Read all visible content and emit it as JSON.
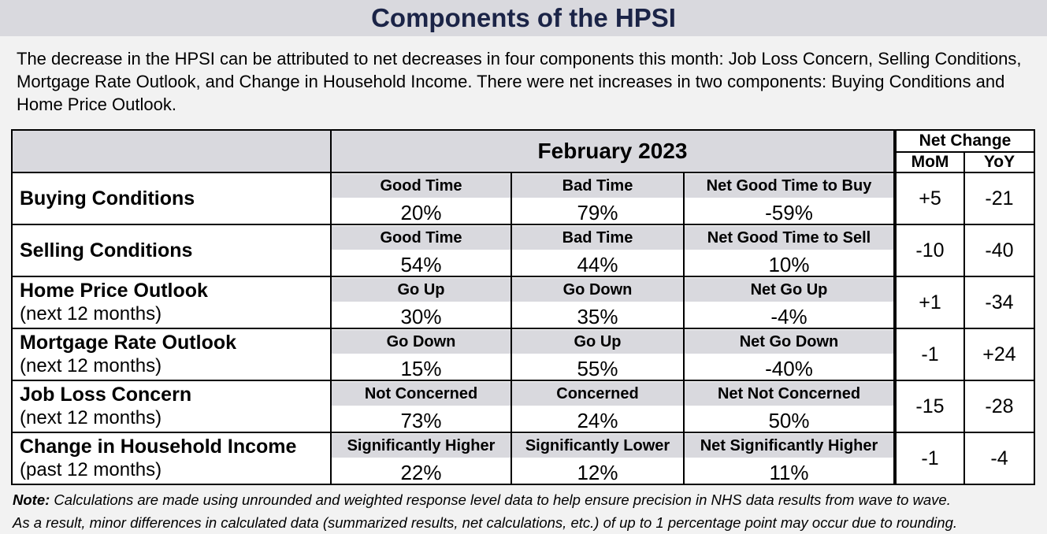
{
  "title": "Components of the HPSI",
  "intro": "The decrease in the HPSI can be attributed to net decreases in four components this month: Job Loss Concern, Selling Conditions, Mortgage Rate Outlook, and Change in Household Income. There were net increases in two components: Buying Conditions and Home Price Outlook.",
  "table": {
    "period": "February 2023",
    "net_change": "Net Change",
    "mom": "MoM",
    "yoy": "YoY",
    "rows": [
      {
        "label": "Buying Conditions",
        "sublabel": "",
        "h1": "Good Time",
        "v1": "20%",
        "h2": "Bad Time",
        "v2": "79%",
        "h3": "Net Good Time to Buy",
        "v3": "-59%",
        "mom": "+5",
        "yoy": "-21"
      },
      {
        "label": "Selling Conditions",
        "sublabel": "",
        "h1": "Good Time",
        "v1": "54%",
        "h2": "Bad Time",
        "v2": "44%",
        "h3": "Net Good Time to Sell",
        "v3": "10%",
        "mom": "-10",
        "yoy": "-40"
      },
      {
        "label": "Home Price Outlook",
        "sublabel": "(next 12 months)",
        "h1": "Go Up",
        "v1": "30%",
        "h2": "Go Down",
        "v2": "35%",
        "h3": "Net Go Up",
        "v3": "-4%",
        "mom": "+1",
        "yoy": "-34"
      },
      {
        "label": "Mortgage Rate Outlook",
        "sublabel": "(next 12 months)",
        "h1": "Go Down",
        "v1": "15%",
        "h2": "Go Up",
        "v2": "55%",
        "h3": "Net Go Down",
        "v3": "-40%",
        "mom": "-1",
        "yoy": "+24"
      },
      {
        "label": "Job Loss Concern",
        "sublabel": "(next 12 months)",
        "h1": "Not Concerned",
        "v1": "73%",
        "h2": "Concerned",
        "v2": "24%",
        "h3": "Net Not Concerned",
        "v3": "50%",
        "mom": "-15",
        "yoy": "-28"
      },
      {
        "label": "Change in Household Income",
        "sublabel": "(past 12 months)",
        "h1": "Significantly Higher",
        "v1": "22%",
        "h2": "Significantly Lower",
        "v2": "12%",
        "h3": "Net Significantly Higher",
        "v3": "11%",
        "mom": "-1",
        "yoy": "-4"
      }
    ]
  },
  "note": {
    "label": "Note:",
    "line1": "Calculations are made using unrounded and weighted response level data to help ensure precision in NHS data results from wave to wave.",
    "line2": "As a result, minor differences in calculated data (summarized results, net calculations, etc.) of up to 1 percentage point may occur due to rounding."
  }
}
